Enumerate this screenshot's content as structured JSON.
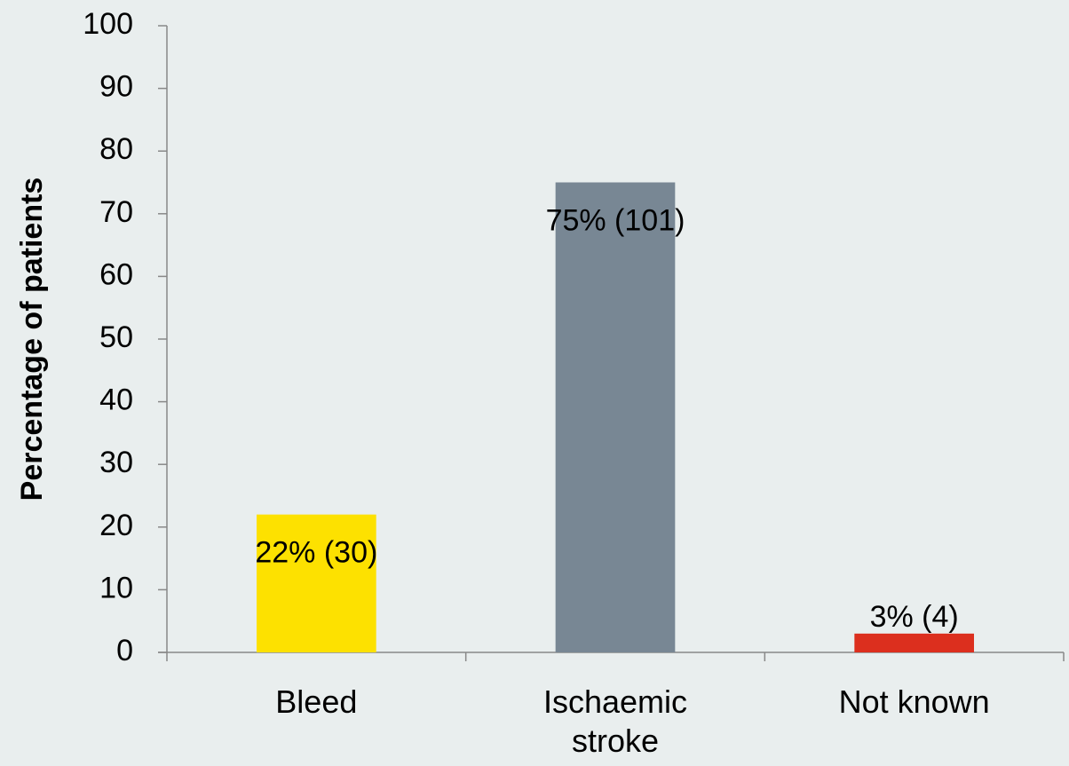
{
  "chart_data": {
    "type": "bar",
    "y_label": "Percentage of patients",
    "categories": [
      "Bleed",
      "Ischaemic stroke",
      "Not known"
    ],
    "values": [
      22,
      75,
      3
    ],
    "value_labels": [
      "22% (30)",
      "75% (101)",
      "3% (4)"
    ],
    "colors": [
      "#fde100",
      "#788794",
      "#dc2f1e"
    ],
    "ylim": [
      0,
      100
    ],
    "yticks": [
      0,
      10,
      20,
      30,
      40,
      50,
      60,
      70,
      80,
      90,
      100
    ],
    "grid": false
  }
}
